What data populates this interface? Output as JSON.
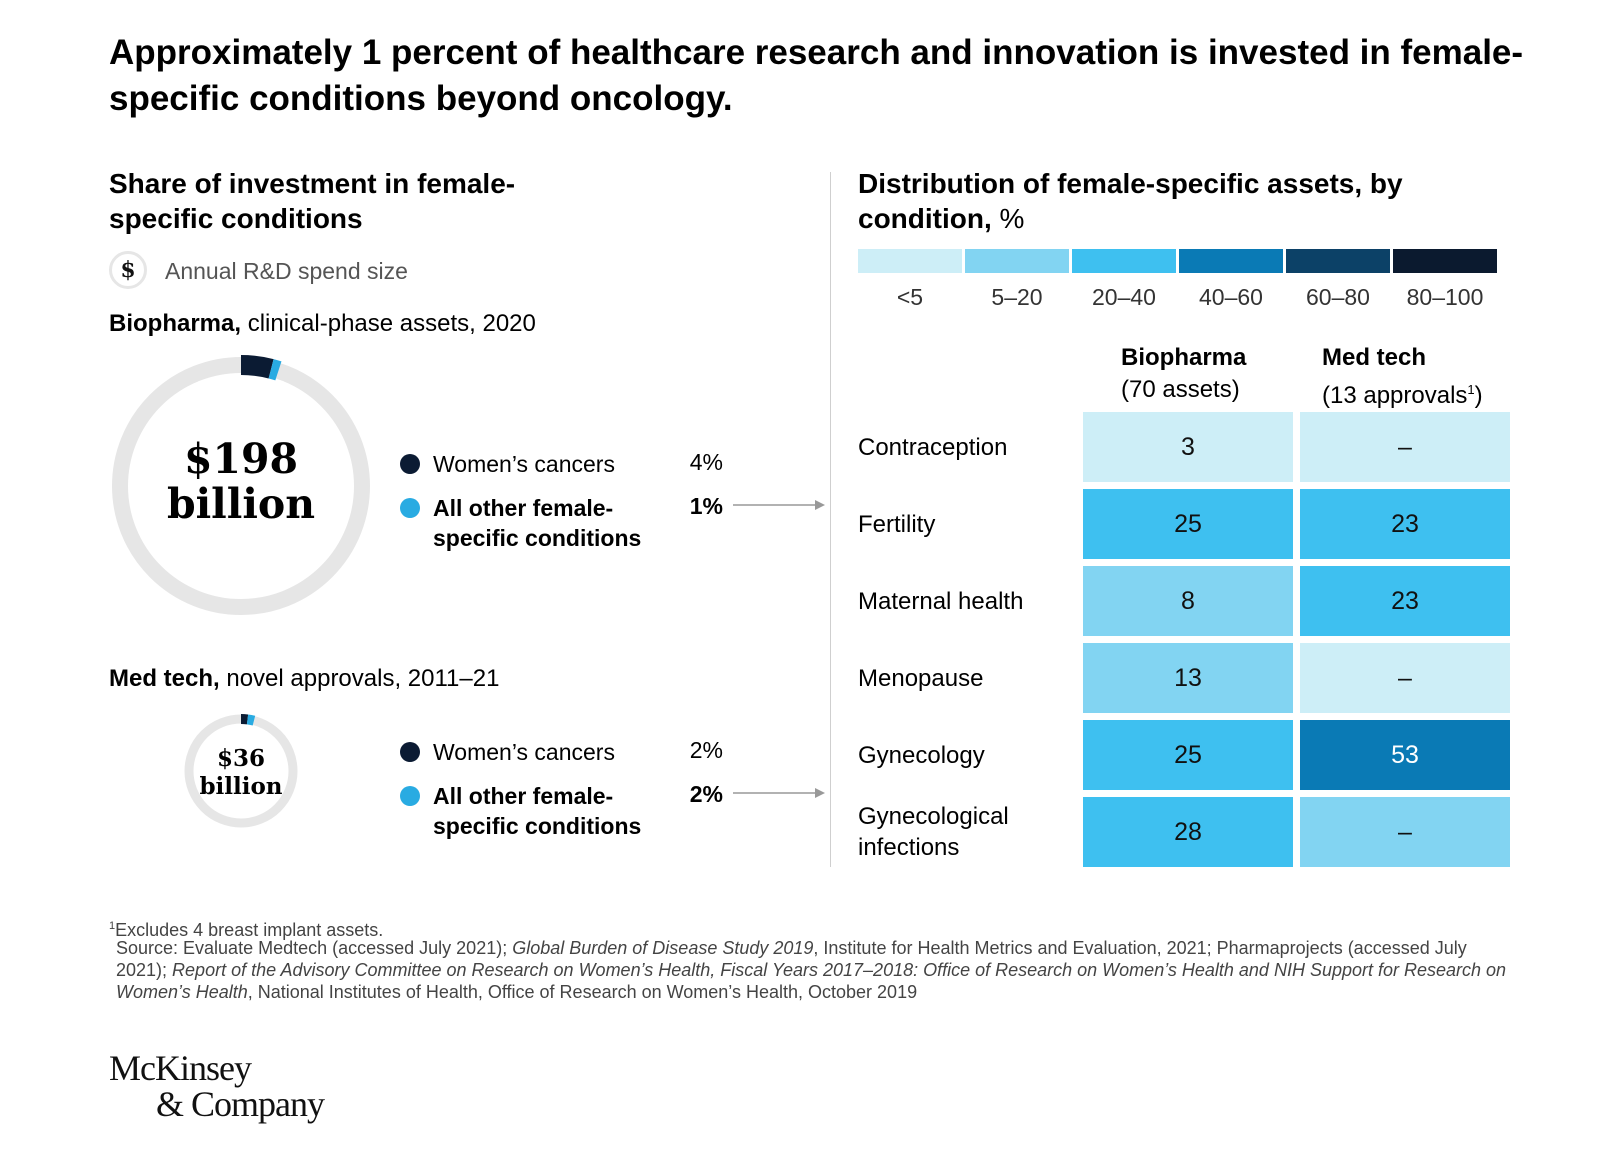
{
  "headline": "Approximately 1 percent of healthcare research and innovation is invested in female-specific conditions beyond oncology.",
  "left": {
    "title": "Share of investment in female-specific conditions",
    "spend_icon_symbol": "$",
    "spend_label": "Annual R&D spend size",
    "biopharma": {
      "title_bold": "Biopharma,",
      "title_rest": " clinical-phase assets, 2020",
      "amount": "$198",
      "unit": "billion",
      "legend": [
        {
          "label": "Women’s cancers",
          "value_text": "4%",
          "value": 4,
          "color": "#0b1b33"
        },
        {
          "label": "All other female-specific conditions",
          "value_text": "1%",
          "value": 1,
          "color": "#29abe2"
        }
      ]
    },
    "medtech": {
      "title_bold": "Med tech,",
      "title_rest": " novel approvals, 2011–21",
      "amount": "$36",
      "unit": "billion",
      "legend": [
        {
          "label": "Women’s cancers",
          "value_text": "2%",
          "value": 2,
          "color": "#0b1b33"
        },
        {
          "label": "All other female-specific conditions",
          "value_text": "2%",
          "value": 2,
          "color": "#29abe2"
        }
      ]
    }
  },
  "right": {
    "title": "Distribution of female-specific assets, by condition,",
    "title_unit": " %",
    "scale": [
      {
        "label": "<5",
        "color": "#cdeef7"
      },
      {
        "label": "5–20",
        "color": "#82d4f2"
      },
      {
        "label": "20–40",
        "color": "#3ec0f0"
      },
      {
        "label": "40–60",
        "color": "#0a7ab5"
      },
      {
        "label": "60–80",
        "color": "#0c4167"
      },
      {
        "label": "80–100",
        "color": "#0b1a2f"
      }
    ],
    "columns": [
      {
        "name": "Biopharma",
        "sub": "(70 assets)",
        "sup": ""
      },
      {
        "name": "Med tech",
        "sub": "(13 approvals",
        "sup": "1",
        "sub_end": ")"
      }
    ]
  },
  "chart_data": [
    {
      "type": "pie",
      "title": "Biopharma, clinical-phase assets, 2020",
      "total": "$198 billion",
      "categories": [
        "Women’s cancers",
        "All other female-specific conditions"
      ],
      "values": [
        4,
        1
      ]
    },
    {
      "type": "pie",
      "title": "Med tech, novel approvals, 2011–21",
      "total": "$36 billion",
      "categories": [
        "Women’s cancers",
        "All other female-specific conditions"
      ],
      "values": [
        2,
        2
      ]
    },
    {
      "type": "heatmap",
      "title": "Distribution of female-specific assets, by condition, %",
      "rows": [
        "Contraception",
        "Fertility",
        "Maternal health",
        "Menopause",
        "Gynecology",
        "Gynecological infections"
      ],
      "columns": [
        "Biopharma",
        "Med tech"
      ],
      "values": [
        [
          3,
          null
        ],
        [
          25,
          23
        ],
        [
          8,
          23
        ],
        [
          13,
          null
        ],
        [
          25,
          53
        ],
        [
          28,
          null
        ]
      ],
      "display": [
        [
          "3",
          "–"
        ],
        [
          "25",
          "23"
        ],
        [
          "8",
          "23"
        ],
        [
          "13",
          "–"
        ],
        [
          "25",
          "53"
        ],
        [
          "28",
          "–"
        ]
      ],
      "cell_colors": [
        [
          "#cdeef7",
          "#cdeef7"
        ],
        [
          "#3ec0f0",
          "#3ec0f0"
        ],
        [
          "#82d4f2",
          "#3ec0f0"
        ],
        [
          "#82d4f2",
          "#cdeef7"
        ],
        [
          "#3ec0f0",
          "#0a7ab5"
        ],
        [
          "#3ec0f0",
          "#82d4f2"
        ]
      ]
    }
  ],
  "footnote": {
    "sup": "1",
    "text": "Excludes 4 breast implant assets.",
    "source_parts": [
      {
        "text": "Source: Evaluate Medtech (accessed July 2021); ",
        "italic": false
      },
      {
        "text": "Global Burden of Disease Study 2019",
        "italic": true
      },
      {
        "text": ", Institute for Health Metrics and Evaluation, 2021; Pharmaprojects (accessed July 2021); ",
        "italic": false
      },
      {
        "text": "Report of the Advisory Committee on Research on Women’s Health, Fiscal Years 2017–2018: Office of Research on Women’s Health and NIH Support for Research on Women’s Health",
        "italic": true
      },
      {
        "text": ", National Institutes of Health, Office of Research on Women’s Health, October 2019",
        "italic": false
      }
    ]
  },
  "logo": {
    "line1": "McKinsey",
    "line2": "& Company"
  }
}
